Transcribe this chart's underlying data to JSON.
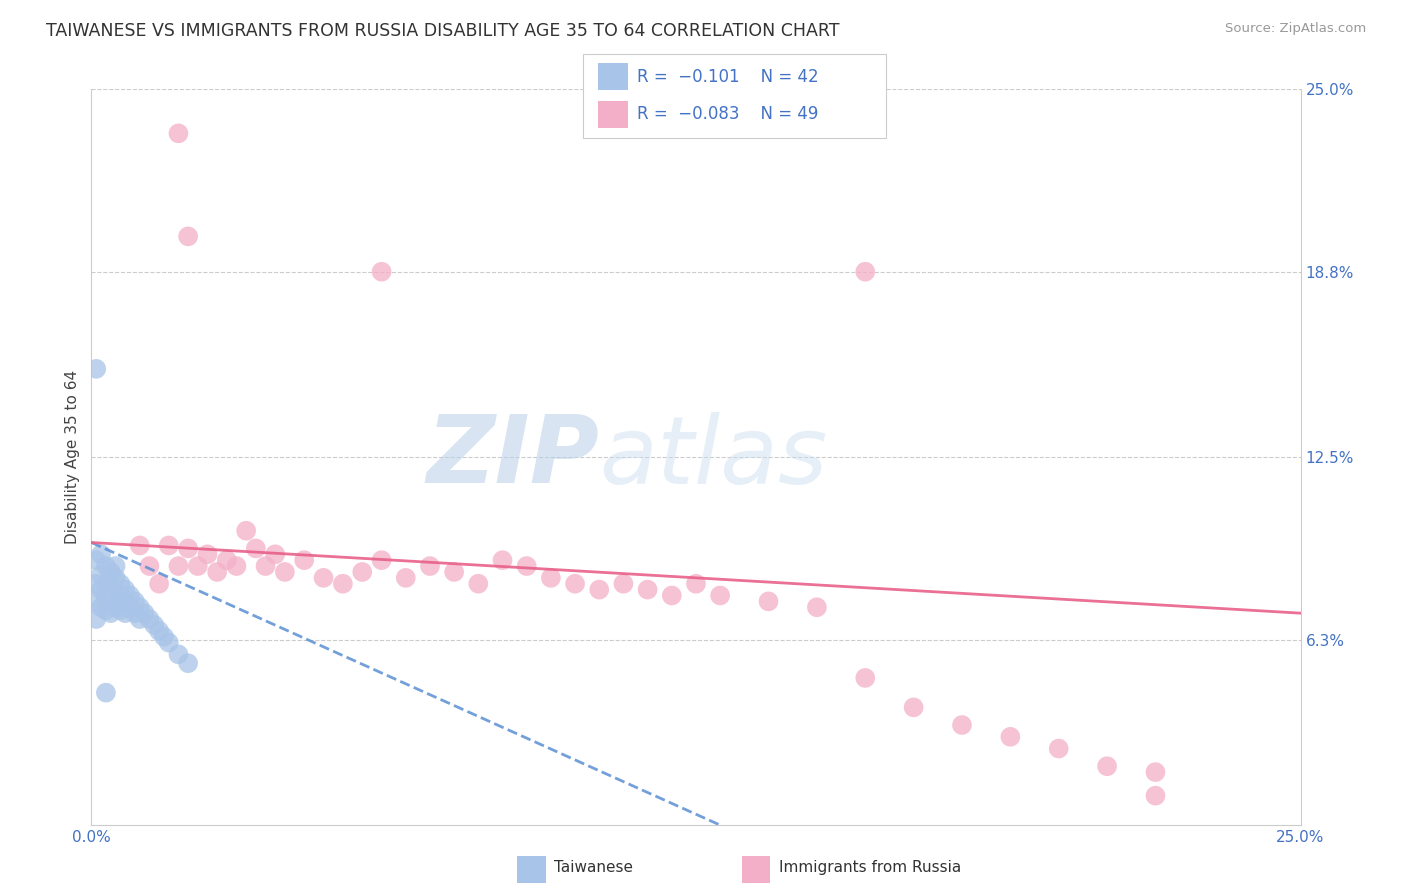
{
  "title": "TAIWANESE VS IMMIGRANTS FROM RUSSIA DISABILITY AGE 35 TO 64 CORRELATION CHART",
  "source": "Source: ZipAtlas.com",
  "ylabel": "Disability Age 35 to 64",
  "xmin": 0.0,
  "xmax": 0.25,
  "ymin": 0.0,
  "ymax": 0.25,
  "taiwan_color": "#a8c4e8",
  "taiwan_line_color": "#5b8fd4",
  "russia_color": "#f4afc8",
  "russia_line_color": "#e8608a",
  "watermark_zip": "ZIP",
  "watermark_atlas": "atlas",
  "background_color": "#ffffff",
  "grid_color": "#cccccc",
  "taiwan_x": [
    0.001,
    0.001,
    0.001,
    0.001,
    0.002,
    0.002,
    0.002,
    0.002,
    0.003,
    0.003,
    0.003,
    0.003,
    0.004,
    0.004,
    0.004,
    0.004,
    0.005,
    0.005,
    0.005,
    0.005,
    0.006,
    0.006,
    0.006,
    0.007,
    0.007,
    0.007,
    0.008,
    0.008,
    0.009,
    0.009,
    0.01,
    0.01,
    0.011,
    0.012,
    0.013,
    0.014,
    0.015,
    0.016,
    0.018,
    0.02,
    0.001,
    0.003
  ],
  "taiwan_y": [
    0.09,
    0.082,
    0.076,
    0.07,
    0.092,
    0.085,
    0.08,
    0.074,
    0.088,
    0.082,
    0.078,
    0.073,
    0.086,
    0.082,
    0.078,
    0.072,
    0.088,
    0.084,
    0.079,
    0.074,
    0.082,
    0.078,
    0.073,
    0.08,
    0.076,
    0.072,
    0.078,
    0.074,
    0.076,
    0.072,
    0.074,
    0.07,
    0.072,
    0.07,
    0.068,
    0.066,
    0.064,
    0.062,
    0.058,
    0.055,
    0.155,
    0.045
  ],
  "russia_x": [
    0.01,
    0.012,
    0.014,
    0.016,
    0.018,
    0.02,
    0.022,
    0.024,
    0.026,
    0.028,
    0.03,
    0.032,
    0.034,
    0.036,
    0.038,
    0.04,
    0.044,
    0.048,
    0.052,
    0.056,
    0.06,
    0.065,
    0.07,
    0.075,
    0.08,
    0.085,
    0.09,
    0.095,
    0.1,
    0.105,
    0.11,
    0.115,
    0.12,
    0.125,
    0.13,
    0.14,
    0.15,
    0.16,
    0.17,
    0.18,
    0.19,
    0.2,
    0.21,
    0.22,
    0.018,
    0.02,
    0.06,
    0.16,
    0.22
  ],
  "russia_y": [
    0.095,
    0.088,
    0.082,
    0.095,
    0.088,
    0.094,
    0.088,
    0.092,
    0.086,
    0.09,
    0.088,
    0.1,
    0.094,
    0.088,
    0.092,
    0.086,
    0.09,
    0.084,
    0.082,
    0.086,
    0.09,
    0.084,
    0.088,
    0.086,
    0.082,
    0.09,
    0.088,
    0.084,
    0.082,
    0.08,
    0.082,
    0.08,
    0.078,
    0.082,
    0.078,
    0.076,
    0.074,
    0.05,
    0.04,
    0.034,
    0.03,
    0.026,
    0.02,
    0.018,
    0.235,
    0.2,
    0.188,
    0.188,
    0.01
  ],
  "tw_line_x0": 0.0,
  "tw_line_y0": 0.096,
  "tw_line_x1": 0.13,
  "tw_line_y1": 0.0,
  "ru_line_x0": 0.0,
  "ru_line_y0": 0.096,
  "ru_line_x1": 0.25,
  "ru_line_y1": 0.072
}
